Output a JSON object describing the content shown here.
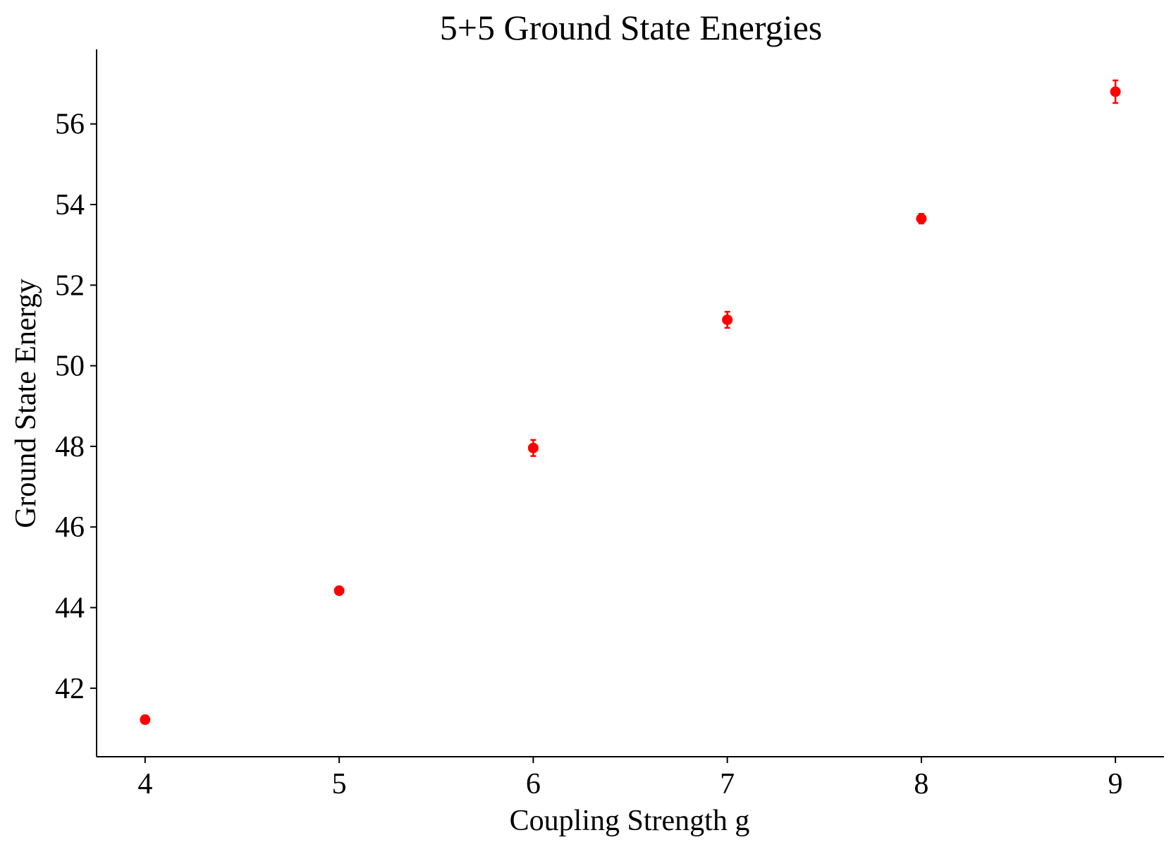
{
  "chart_data": {
    "type": "scatter",
    "title": "5+5 Ground State Energies",
    "xlabel": "Coupling Strength g",
    "ylabel": "Ground State Energy",
    "xlim": [
      3.75,
      9.25
    ],
    "ylim": [
      40.3,
      57.85
    ],
    "x_ticks": [
      4,
      5,
      6,
      7,
      8,
      9
    ],
    "y_ticks": [
      42,
      44,
      46,
      48,
      50,
      52,
      54,
      56
    ],
    "grid": false,
    "marker_color": "#ff0000",
    "series": [
      {
        "points": [
          {
            "x": 4,
            "y": 41.22,
            "err": 0.05
          },
          {
            "x": 5,
            "y": 44.42,
            "err": 0.07
          },
          {
            "x": 6,
            "y": 47.96,
            "err": 0.2
          },
          {
            "x": 7,
            "y": 51.14,
            "err": 0.2
          },
          {
            "x": 8,
            "y": 53.65,
            "err": 0.12
          },
          {
            "x": 9,
            "y": 56.8,
            "err": 0.28
          }
        ]
      }
    ]
  }
}
